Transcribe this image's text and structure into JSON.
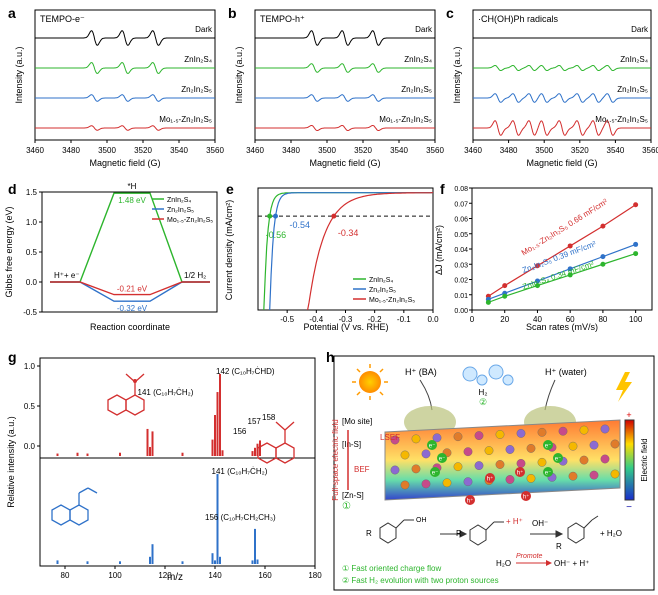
{
  "colors": {
    "black": "#000000",
    "green": "#2db52d",
    "blue": "#2f72c9",
    "red": "#d32f2f",
    "gray": "#7f7f7f",
    "dash": "#111111"
  },
  "chart_data": [
    {
      "id": "a",
      "type": "line",
      "panel_label": "a",
      "inset_title": "TEMPO-e⁻",
      "xlabel": "Magnetic field (G)",
      "ylabel": "Intensity (a.u.)",
      "xlim": [
        3460,
        3560
      ],
      "xticks": [
        3460,
        3480,
        3500,
        3520,
        3540,
        3560
      ],
      "lines": [
        3493,
        3510,
        3527
      ],
      "series": [
        {
          "name": "Dark",
          "amp": 1.0,
          "color": "#000000"
        },
        {
          "name": "ZnIn₂S₄",
          "amp": 0.75,
          "color": "#2db52d"
        },
        {
          "name": "Zn₂In₂S₅",
          "amp": 0.45,
          "color": "#2f72c9"
        },
        {
          "name": "Mo₁.₅-Zn₂In₂S₅",
          "amp": 0.3,
          "color": "#d32f2f"
        }
      ]
    },
    {
      "id": "b",
      "type": "line",
      "panel_label": "b",
      "inset_title": "TEMPO-h⁺",
      "xlabel": "Magnetic field (G)",
      "ylabel": "Intensity (a.u.)",
      "xlim": [
        3460,
        3560
      ],
      "xticks": [
        3460,
        3480,
        3500,
        3520,
        3540,
        3560
      ],
      "lines": [
        3493,
        3510,
        3527
      ],
      "series": [
        {
          "name": "Dark",
          "amp": 1.0,
          "color": "#000000"
        },
        {
          "name": "ZnIn₂S₄",
          "amp": 0.6,
          "color": "#2db52d"
        },
        {
          "name": "Zn₂In₂S₅",
          "amp": 0.45,
          "color": "#2f72c9"
        },
        {
          "name": "Mo₁.₅-Zn₂In₂S₅",
          "amp": 0.35,
          "color": "#d32f2f"
        }
      ]
    },
    {
      "id": "c",
      "type": "line",
      "panel_label": "c",
      "inset_title": "·CH(OH)Ph radicals",
      "xlabel": "Magnetic field (G)",
      "ylabel": "Intensity (a.u.)",
      "xlim": [
        3460,
        3560
      ],
      "xticks": [
        3460,
        3480,
        3500,
        3520,
        3540,
        3560
      ],
      "lines": [
        3474,
        3484,
        3493,
        3500,
        3510,
        3520,
        3529,
        3537
      ],
      "series": [
        {
          "name": "Dark",
          "amp": 0.0,
          "color": "#000000"
        },
        {
          "name": "ZnIn₂S₄",
          "amp": 0.35,
          "color": "#2db52d"
        },
        {
          "name": "Zn₂In₂S₅",
          "amp": 0.6,
          "color": "#2f72c9"
        },
        {
          "name": "Mo₁.₅-Zn₂In₂S₅",
          "amp": 1.0,
          "color": "#d32f2f"
        }
      ]
    },
    {
      "id": "d",
      "type": "line",
      "panel_label": "d",
      "xlabel": "Reaction coordinate",
      "ylabel": "Gibbs free energy (eV)",
      "ylim": [
        -0.5,
        1.5
      ],
      "yticks": [
        -0.5,
        0.0,
        0.5,
        1.0,
        1.5
      ],
      "states": [
        "H⁺+ e⁻",
        "*H",
        "1/2 H₂"
      ],
      "series": [
        {
          "name": "ZnIn₂S₄",
          "values": [
            0,
            1.48,
            0
          ],
          "color": "#2db52d",
          "label": "1.48 eV"
        },
        {
          "name": "Zn₂In₂S₅",
          "values": [
            0,
            -0.32,
            0
          ],
          "color": "#2f72c9",
          "label": "-0.32 eV"
        },
        {
          "name": "Mo₁.₅-Zn₂In₂S₅",
          "values": [
            0,
            -0.21,
            0
          ],
          "color": "#d32f2f",
          "label": "-0.21 eV"
        }
      ]
    },
    {
      "id": "e",
      "type": "line",
      "panel_label": "e",
      "xlabel": "Potential (V vs. RHE)",
      "ylabel": "Current density (mA/cm²)",
      "xlim": [
        -0.6,
        0.0
      ],
      "xticks": [
        -0.5,
        -0.4,
        -0.3,
        -0.2,
        -0.1,
        0.0
      ],
      "ylim": [
        -50,
        2
      ],
      "hline": -10,
      "series": [
        {
          "name": "ZnIn₂S₄",
          "color": "#2db52d",
          "onset": -0.56,
          "label": "-0.56"
        },
        {
          "name": "Zn₂In₂S₅",
          "color": "#2f72c9",
          "onset": -0.54,
          "label": "-0.54"
        },
        {
          "name": "Mo₁.₅-Zn₂In₂S₅",
          "color": "#d32f2f",
          "onset": -0.34,
          "label": "-0.34"
        }
      ]
    },
    {
      "id": "f",
      "type": "scatter",
      "panel_label": "f",
      "xlabel": "Scan rates  (mV/s)",
      "ylabel": "ΔJ (mA/cm²)",
      "xlim": [
        0,
        110
      ],
      "xticks": [
        0,
        20,
        40,
        60,
        80,
        100
      ],
      "ylim": [
        0,
        0.08
      ],
      "yticks": [
        0.0,
        0.01,
        0.02,
        0.03,
        0.04,
        0.05,
        0.06,
        0.07,
        0.08
      ],
      "x": [
        10,
        20,
        40,
        60,
        80,
        100
      ],
      "series": [
        {
          "name": "Mo₁.₅-Zn₂In₂S₅",
          "values": [
            0.009,
            0.016,
            0.029,
            0.042,
            0.055,
            0.069
          ],
          "color": "#d32f2f",
          "label": "Mo₁.₅-Zn₂In₂S₅ 0.66 mF/cm²"
        },
        {
          "name": "Zn₂In₂S₅",
          "values": [
            0.007,
            0.011,
            0.019,
            0.027,
            0.035,
            0.043
          ],
          "color": "#2f72c9",
          "label": "Zn₂In₂S₅ 0.39 mF/cm²"
        },
        {
          "name": "ZnIn₂S₄",
          "values": [
            0.005,
            0.009,
            0.016,
            0.023,
            0.03,
            0.037
          ],
          "color": "#2db52d",
          "label": "ZnIn₂S₄ 0.34 mF/cm²"
        }
      ]
    },
    {
      "id": "g",
      "type": "bar",
      "panel_label": "g",
      "xlabel": "m/z",
      "ylabel": "Relative intensity (a.u.)",
      "xlim": [
        70,
        180
      ],
      "xticks": [
        80,
        100,
        120,
        140,
        160,
        180
      ],
      "yticks": [
        0.0,
        0.5,
        1.0
      ],
      "series": [
        {
          "name": "top",
          "color": "#d32f2f",
          "peaks": [
            [
              77,
              0.03
            ],
            [
              85,
              0.04
            ],
            [
              89,
              0.03
            ],
            [
              102,
              0.04
            ],
            [
              113,
              0.33
            ],
            [
              114,
              0.11
            ],
            [
              115,
              0.3
            ],
            [
              127,
              0.04
            ],
            [
              139,
              0.2
            ],
            [
              140,
              0.5
            ],
            [
              141,
              0.78
            ],
            [
              142,
              1.0
            ],
            [
              143,
              0.07
            ],
            [
              155,
              0.06
            ],
            [
              156,
              0.1
            ],
            [
              157,
              0.15
            ],
            [
              158,
              0.19
            ]
          ],
          "annotations": [
            "142 (C₁₀H₇ĊHD)",
            "141 (C₁₀H₇ĊH₂)",
            "157",
            "158",
            "156"
          ]
        },
        {
          "name": "bottom",
          "color": "#2f72c9",
          "peaks": [
            [
              77,
              0.04
            ],
            [
              89,
              0.03
            ],
            [
              102,
              0.03
            ],
            [
              114,
              0.08
            ],
            [
              115,
              0.22
            ],
            [
              127,
              0.03
            ],
            [
              139,
              0.12
            ],
            [
              140,
              0.04
            ],
            [
              141,
              1.0
            ],
            [
              142,
              0.08
            ],
            [
              155,
              0.04
            ],
            [
              156,
              0.39
            ],
            [
              157,
              0.05
            ]
          ],
          "annotations": [
            "141 (C₁₀H₇ĊH₂)",
            "156 (C₁₀H₇CH₂CH₃)"
          ]
        }
      ]
    }
  ],
  "panel_h": {
    "label": "h",
    "top_left_label": "H⁺ (BA)",
    "top_right_label": "H⁺ (water)",
    "h2_label": "H₂",
    "circle1": "①",
    "circle2": "②",
    "mo_site": "[Mo site]",
    "in_s": "[In-S]",
    "zn_s": "[Zn-S]",
    "lsef": "LSEF",
    "bef": "BEF",
    "left_vertical": "Full-space electric field",
    "right_vertical": "Electric field",
    "plus": "+",
    "minus": "−",
    "e_label": "e⁻",
    "h_label": "h⁺",
    "eq_promote": "Promote",
    "eq_left": "H₂O",
    "eq_right": "OH⁻ + H⁺",
    "oh_minus": "OH⁻",
    "plus_hplus": "+ H⁺",
    "plus_h2o": "+ H₂O",
    "legend1": "① Fast oriented charge flow",
    "legend2": "② Fast H₂ evolution with two proton sources",
    "r_label": "R"
  }
}
